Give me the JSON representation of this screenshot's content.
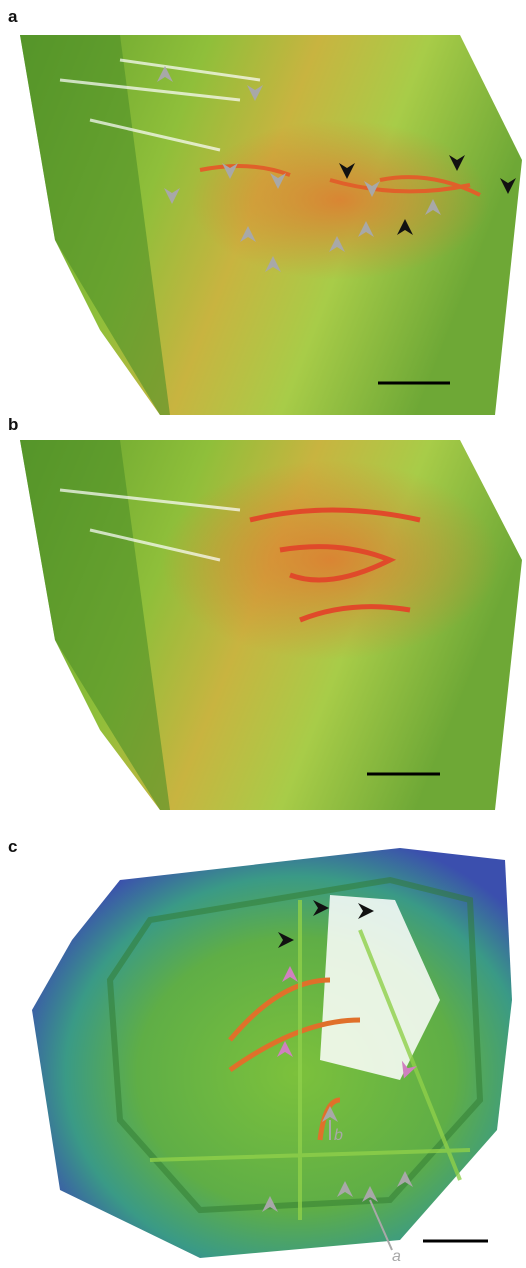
{
  "panels": [
    {
      "label": "a"
    },
    {
      "label": "b"
    },
    {
      "label": "c",
      "annotations": [
        "b",
        "a"
      ]
    }
  ]
}
